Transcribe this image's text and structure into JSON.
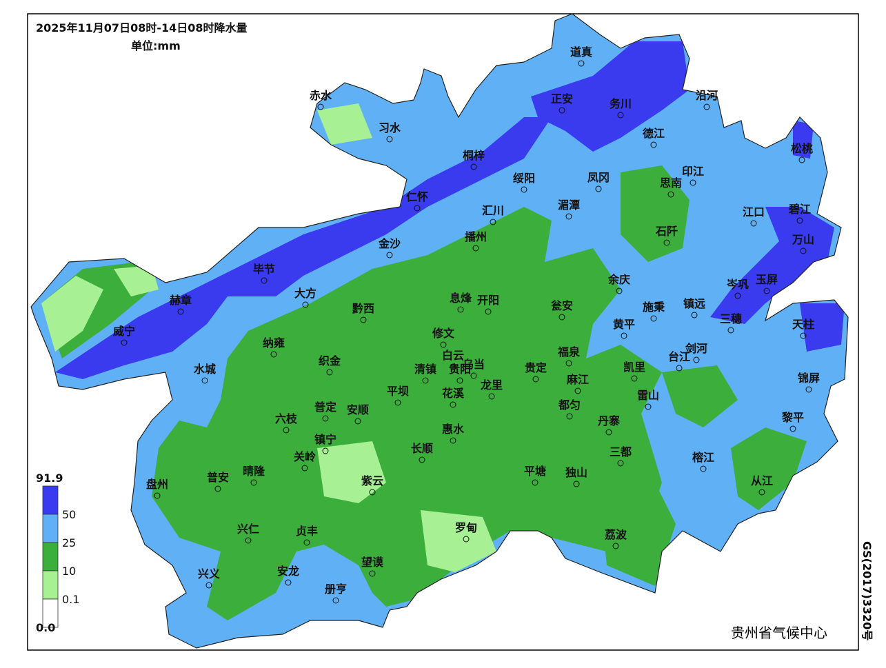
{
  "title": "2025年11月07日08时-14日08时降水量",
  "unit": "单位:mm",
  "legend": {
    "labels": [
      "91.9",
      "50",
      "25",
      "10",
      "0.1",
      "0.0"
    ],
    "colors": [
      "#3a3aee",
      "#5fb0f5",
      "#3cae3c",
      "#a8f094",
      "#ffffff"
    ]
  },
  "cities": [
    "道真",
    "沿河",
    "正安",
    "务川",
    "赤水",
    "习水",
    "德江",
    "松桃",
    "桐梓",
    "印江",
    "绥阳",
    "凤冈",
    "思南",
    "仁怀",
    "汇川",
    "湄潭",
    "江口",
    "碧江",
    "石阡",
    "万山",
    "金沙",
    "播州",
    "毕节",
    "余庆",
    "岑巩",
    "玉屏",
    "大方",
    "赫章",
    "息烽",
    "开阳",
    "瓮安",
    "施秉",
    "镇远",
    "黔西",
    "三穗",
    "黄平",
    "天柱",
    "威宁",
    "修文",
    "纳雍",
    "福泉",
    "剑河",
    "台江",
    "白云",
    "乌当",
    "清镇",
    "贵阳",
    "织金",
    "水城",
    "贵定",
    "凯里",
    "锦屏",
    "麻江",
    "龙里",
    "花溪",
    "平坝",
    "都匀",
    "雷山",
    "普定",
    "安顺",
    "六枝",
    "黎平",
    "丹寨",
    "惠水",
    "镇宁",
    "长顺",
    "三都",
    "关岭",
    "晴隆",
    "榕江",
    "平塘",
    "独山",
    "普安",
    "盘州",
    "紫云",
    "从江",
    "罗甸",
    "兴仁",
    "贞丰",
    "荔波",
    "望谟",
    "兴义",
    "安龙",
    "册亨"
  ],
  "agency": "贵州省气候中心",
  "map_number": "GS(2017)3320号"
}
